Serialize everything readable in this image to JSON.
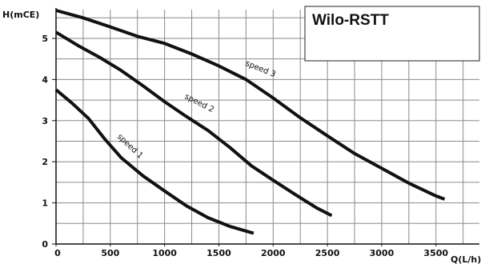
{
  "chart_data": {
    "type": "line",
    "title": "Wilo-RSTT",
    "xlabel": "Q(L/h)",
    "ylabel": "H(mCE)",
    "xlim": [
      0,
      3900
    ],
    "ylim": [
      0,
      5.7
    ],
    "grid": true,
    "x_ticks": [
      0,
      500,
      1000,
      1500,
      2000,
      2500,
      3000,
      3500
    ],
    "y_ticks": [
      0,
      1,
      2,
      3,
      4,
      5
    ],
    "series": [
      {
        "name": "speed 1",
        "x": [
          0,
          150,
          300,
          450,
          600,
          800,
          1000,
          1200,
          1400,
          1600,
          1820
        ],
        "y": [
          3.75,
          3.42,
          3.05,
          2.55,
          2.1,
          1.66,
          1.29,
          0.93,
          0.64,
          0.43,
          0.26
        ]
      },
      {
        "name": "speed 2",
        "x": [
          0,
          200,
          400,
          600,
          800,
          1000,
          1200,
          1400,
          1600,
          1800,
          2000,
          2200,
          2400,
          2540
        ],
        "y": [
          5.15,
          4.83,
          4.54,
          4.22,
          3.85,
          3.46,
          3.1,
          2.76,
          2.35,
          1.9,
          1.55,
          1.21,
          0.88,
          0.69
        ]
      },
      {
        "name": "speed 3",
        "x": [
          0,
          250,
          500,
          750,
          1000,
          1250,
          1500,
          1750,
          2000,
          2250,
          2500,
          2750,
          3000,
          3250,
          3500,
          3580
        ],
        "y": [
          5.68,
          5.5,
          5.28,
          5.05,
          4.88,
          4.62,
          4.33,
          4.0,
          3.55,
          3.07,
          2.63,
          2.2,
          1.84,
          1.48,
          1.17,
          1.09
        ]
      }
    ],
    "series_labels": [
      "speed 1",
      "speed 2",
      "speed 3"
    ]
  }
}
